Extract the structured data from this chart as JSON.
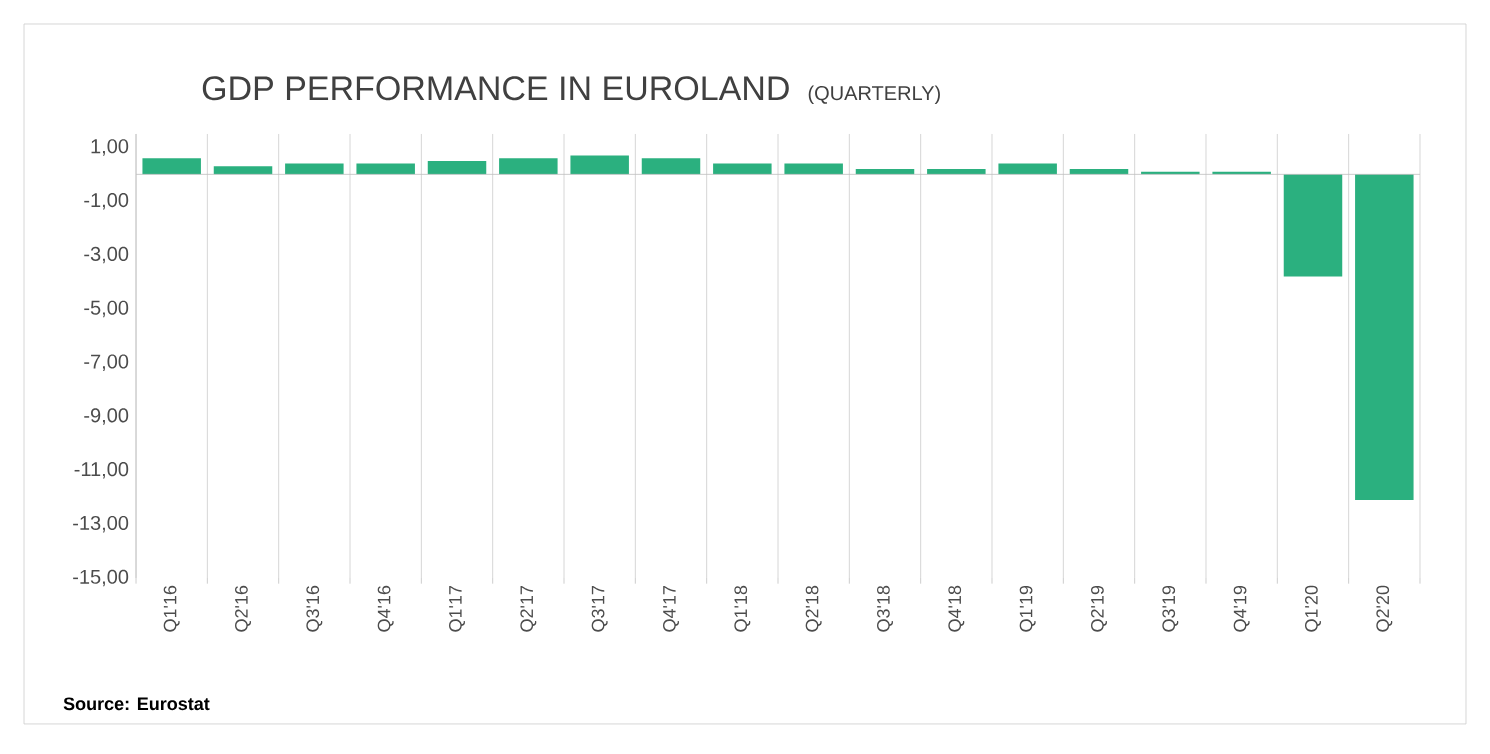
{
  "chart_data": {
    "type": "bar",
    "title": "GDP PERFORMANCE IN EUROLAND",
    "subtitle": "(QUARTERLY)",
    "categories": [
      "Q1'16",
      "Q2'16",
      "Q3'16",
      "Q4'16",
      "Q1'17",
      "Q2'17",
      "Q3'17",
      "Q4'17",
      "Q1'18",
      "Q2'18",
      "Q3'18",
      "Q4'18",
      "Q1'19",
      "Q2'19",
      "Q3'19",
      "Q4'19",
      "Q1'20",
      "Q2'20"
    ],
    "values": [
      0.6,
      0.3,
      0.4,
      0.4,
      0.5,
      0.6,
      0.7,
      0.6,
      0.4,
      0.4,
      0.2,
      0.2,
      0.4,
      0.2,
      0.1,
      0.1,
      -3.8,
      -12.1
    ],
    "color": "#2bb07f",
    "ylim": [
      -15,
      1.5
    ],
    "yticks": [
      {
        "value": 1,
        "label": "1,00"
      },
      {
        "value": -1,
        "label": "-1,00"
      },
      {
        "value": -3,
        "label": "-3,00"
      },
      {
        "value": -5,
        "label": "-5,00"
      },
      {
        "value": -7,
        "label": "-7,00"
      },
      {
        "value": -9,
        "label": "-9,00"
      },
      {
        "value": -11,
        "label": "-11,00"
      },
      {
        "value": -13,
        "label": "-13,00"
      },
      {
        "value": -15,
        "label": "-15,00"
      }
    ],
    "grid": "x",
    "annotations": [
      "Source: Eurostat"
    ]
  }
}
